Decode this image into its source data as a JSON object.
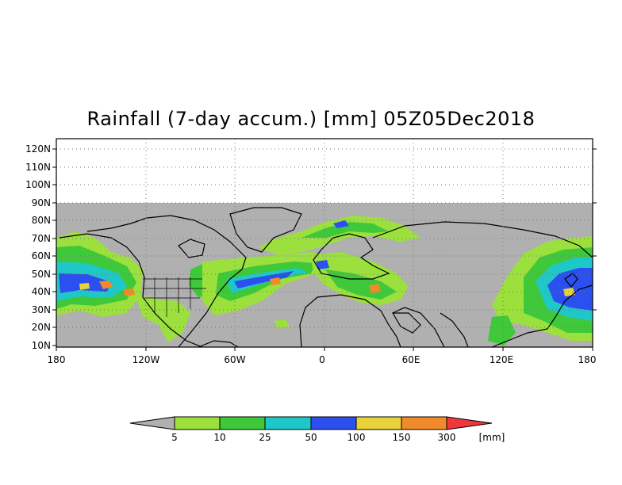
{
  "title": "Rainfall (7-day accum.) [mm] 05Z05Dec2018",
  "map": {
    "lat_labels": [
      "120N",
      "110N",
      "100N",
      "90N",
      "80N",
      "70N",
      "60N",
      "50N",
      "40N",
      "30N",
      "20N",
      "10N"
    ],
    "lon_labels": [
      "180",
      "120W",
      "60W",
      "0",
      "60E",
      "120E",
      "180"
    ],
    "lat_range": [
      10,
      128
    ],
    "lon_range": [
      -180,
      180
    ]
  },
  "colorbar": {
    "levels": [
      "5",
      "10",
      "25",
      "50",
      "100",
      "150",
      "300"
    ],
    "units": "[mm]",
    "colors": [
      "#b0b0b0",
      "#9be03c",
      "#3ec83a",
      "#1fc8c8",
      "#2c4ff0",
      "#e8d23a",
      "#f08a2a",
      "#f0373c"
    ]
  }
}
